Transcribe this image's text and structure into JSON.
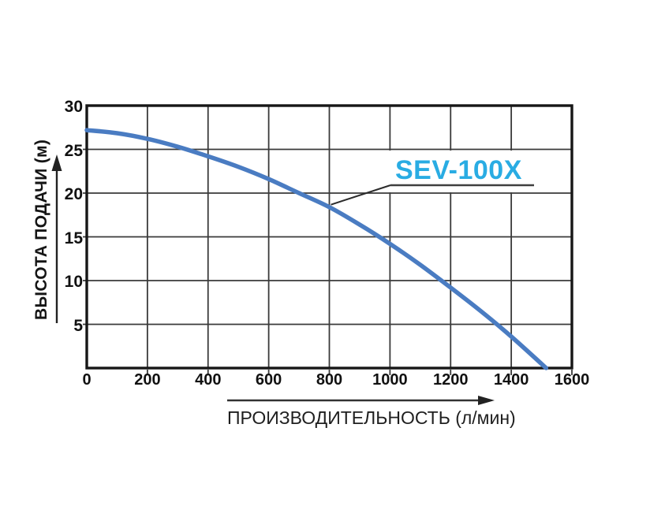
{
  "figure": {
    "series_label": "SEV-100X",
    "series_label_color": "#29ace3",
    "curve_color": "#4a7cc2",
    "grid_color": "#3a3a3a",
    "frame_color": "#161616"
  },
  "chart_data": {
    "type": "line",
    "title": "",
    "xlabel": "ПРОИЗВОДИТЕЛЬНОСТЬ (л/мин)",
    "ylabel": "ВЫСОТА ПОДАЧИ (м)",
    "xlim": [
      0,
      1600
    ],
    "ylim": [
      0,
      30
    ],
    "x_ticks": [
      0,
      200,
      400,
      600,
      800,
      1000,
      1200,
      1400,
      1600
    ],
    "y_ticks": [
      30,
      25,
      20,
      15,
      10,
      5
    ],
    "grid": true,
    "legend_position": "none",
    "series": [
      {
        "name": "SEV-100X",
        "points": [
          [
            0,
            27.2
          ],
          [
            100,
            26.85
          ],
          [
            200,
            26.2
          ],
          [
            300,
            25.3
          ],
          [
            400,
            24.2
          ],
          [
            500,
            23.0
          ],
          [
            600,
            21.6
          ],
          [
            700,
            20.0
          ],
          [
            800,
            18.4
          ],
          [
            900,
            16.4
          ],
          [
            1000,
            14.2
          ],
          [
            1100,
            11.8
          ],
          [
            1200,
            9.2
          ],
          [
            1300,
            6.5
          ],
          [
            1400,
            3.6
          ],
          [
            1515,
            0
          ]
        ]
      }
    ],
    "annotation": {
      "text": "SEV-100X",
      "points_to_x": 800,
      "points_to_y": 18.5
    }
  }
}
